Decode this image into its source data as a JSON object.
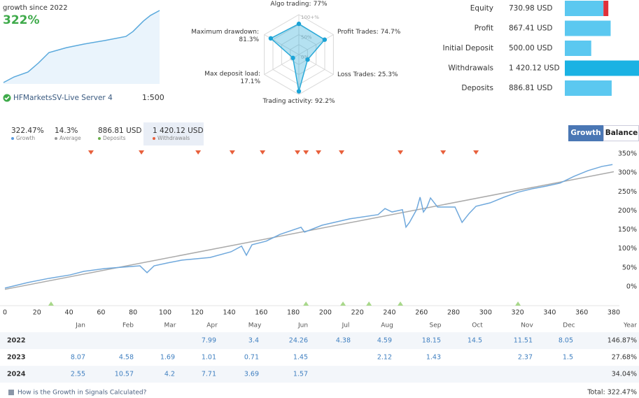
{
  "header": {
    "growth_label": "growth since 2022",
    "growth_value": "322%",
    "server": "HFMarketsSV-Live Server 4",
    "leverage": "1:500"
  },
  "growth_sparkline": {
    "color": "#5aa9dc",
    "x": [
      0,
      25.6,
      59.6,
      85.2,
      110.7,
      153.3,
      195.9,
      247,
      298.1,
      315.2,
      340.7,
      357.8,
      380
    ],
    "values": [
      0,
      25,
      47,
      87.5,
      134,
      156,
      172,
      188,
      206,
      228,
      275,
      300,
      322
    ]
  },
  "radar": {
    "categories": [
      "Algo trading:",
      "Profit Trades:",
      "Loss Trades:",
      "Trading activity:",
      "Max deposit load:",
      "Maximum drawdown:"
    ],
    "values": [
      77,
      74.7,
      25.3,
      92.2,
      17.1,
      81.3
    ],
    "value_labels": [
      "77%",
      "74.7%",
      "25.3%",
      "92.2%",
      "17.1%",
      "81.3%"
    ],
    "rticks": [
      {
        "value": 0,
        "label": "0%"
      },
      {
        "value": 50,
        "label": "50%"
      },
      {
        "value": 100,
        "label": "100+%"
      }
    ],
    "color": "#29a9d8"
  },
  "account_bars": {
    "categories": [
      "Equity",
      "Profit",
      "Initial Deposit",
      "Withdrawals",
      "Deposits"
    ],
    "values": [
      730.98,
      867.41,
      500.0,
      1420.12,
      886.81
    ],
    "value_labels": [
      "730.98 USD",
      "867.41 USD",
      "500.00 USD",
      "1 420.12 USD",
      "886.81 USD"
    ],
    "colors": [
      "#5bc8f0",
      "#5bc8f0",
      "#5bc8f0",
      "#1ab2e3",
      "#5bc8f0"
    ]
  },
  "stats": [
    {
      "value": "322.47%",
      "label": "Growth",
      "color": "#5a9be0"
    },
    {
      "value": "14.3%",
      "label": "Average",
      "color": "#999999"
    },
    {
      "value": "886.81 USD",
      "label": "Deposits",
      "color": "#6ab04c"
    },
    {
      "value": "1 420.12 USD",
      "label": "Withdrawals",
      "color": "#e8603c"
    }
  ],
  "tabs": [
    "Growth",
    "Balance"
  ],
  "chart_data": {
    "type": "line",
    "xlim": [
      0,
      380
    ],
    "xticks": [
      0,
      20,
      40,
      60,
      80,
      100,
      120,
      140,
      160,
      180,
      200,
      220,
      240,
      260,
      280,
      300,
      320,
      340,
      360,
      380
    ],
    "ylim": [
      -50,
      363
    ],
    "yticks": [
      {
        "value": 0,
        "label": "0%"
      },
      {
        "value": 50,
        "label": "50%"
      },
      {
        "value": 100,
        "label": "100%"
      },
      {
        "value": 150,
        "label": "150%"
      },
      {
        "value": 200,
        "label": "200%"
      },
      {
        "value": 250,
        "label": "250%"
      },
      {
        "value": 300,
        "label": "300%"
      },
      {
        "value": 350,
        "label": "350%"
      }
    ],
    "series": [
      {
        "color": "#6fa8dc",
        "x": [
          0,
          14.4,
          27.5,
          40.6,
          49.4,
          62.5,
          84.3,
          88.7,
          93.1,
          101.8,
          110.5,
          128,
          141.1,
          147.7,
          150.7,
          154.2,
          163,
          171.7,
          184.8,
          187,
          197.9,
          215.4,
          232.9,
          237.2,
          241.6,
          248.1,
          250.3,
          252.5,
          256.9,
          259.1,
          261.2,
          263.4,
          265.6,
          270,
          280.9,
          285.3,
          289.7,
          294,
          302.8,
          311.5,
          320.2,
          329,
          337.7,
          346.4,
          355.2,
          363.9,
          372.6,
          379.2
        ],
        "values": [
          -3.7,
          11,
          22,
          31,
          40.5,
          48,
          55,
          37,
          55,
          63,
          70,
          77,
          92,
          107,
          83,
          110.5,
          120,
          138,
          156.6,
          144,
          162,
          179,
          190,
          206,
          197,
          203,
          157,
          169.5,
          203,
          236,
          197,
          210,
          234,
          210,
          210,
          169.5,
          193,
          212,
          221,
          236,
          249,
          258,
          265,
          273,
          291,
          306,
          317,
          322
        ]
      },
      {
        "color": "#aaaaaa",
        "x": [
          0,
          380
        ],
        "values": [
          -7,
          303
        ]
      }
    ],
    "withdrawal_markers_x": [
      53.7,
      85.2,
      120.6,
      141.9,
      160.8,
      182.6,
      187.9,
      195.7,
      210.1,
      246.8,
      273.5,
      294
    ],
    "deposit_markers_x": [
      28.8,
      187.9,
      211,
      227.2,
      246.8,
      320.2
    ],
    "grid": false
  },
  "monthly_table": {
    "columns": [
      "Jan",
      "Feb",
      "Mar",
      "Apr",
      "May",
      "Jun",
      "Jul",
      "Aug",
      "Sep",
      "Oct",
      "Nov",
      "Dec",
      "Year"
    ],
    "rows": [
      {
        "year": "2022",
        "cells": [
          null,
          null,
          null,
          "7.99",
          "3.4",
          "24.26",
          "4.38",
          "4.59",
          "18.15",
          "14.5",
          "11.51",
          "8.05",
          "146.87%"
        ]
      },
      {
        "year": "2023",
        "cells": [
          "8.07",
          "4.58",
          "1.69",
          "1.01",
          "0.71",
          "1.45",
          null,
          "2.12",
          "1.43",
          null,
          "2.37",
          "1.5",
          "27.68%"
        ]
      },
      {
        "year": "2024",
        "cells": [
          "2.55",
          "10.57",
          "4.2",
          "7.71",
          "3.69",
          "1.57",
          null,
          null,
          null,
          null,
          null,
          null,
          "34.04%"
        ]
      }
    ]
  },
  "footer": {
    "link": "How is the Growth in Signals Calculated?",
    "total": "Total: 322.47%"
  }
}
